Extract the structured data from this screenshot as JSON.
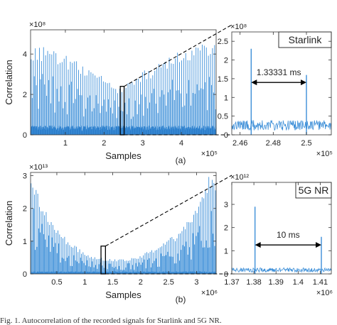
{
  "chart_data": [
    {
      "id": "a-main",
      "type": "line",
      "ylabel": "Correlation",
      "xlabel": "Samples",
      "x_exponent": "×10⁵",
      "y_exponent": "×10⁸",
      "panel_label": "(a)",
      "xlim": [
        0.1,
        4.9
      ],
      "ylim": [
        0,
        5.2
      ],
      "xticks": [
        1,
        2,
        3,
        4
      ],
      "yticks": [
        0,
        2,
        4
      ],
      "color": "#3d8fd8",
      "baseline_level": 0.35,
      "peak_spacing": 0.0533,
      "peak_envelope": [
        [
          0.1,
          4.5
        ],
        [
          0.6,
          4.3
        ],
        [
          1.2,
          3.8
        ],
        [
          1.8,
          3.1
        ],
        [
          2.4,
          2.3
        ],
        [
          3.0,
          3.2
        ],
        [
          3.6,
          3.8
        ],
        [
          4.2,
          4.4
        ],
        [
          4.9,
          4.8
        ]
      ],
      "zoom_box": {
        "x": [
          2.42,
          2.52
        ],
        "y": [
          0,
          2.4
        ]
      }
    },
    {
      "id": "a-zoom",
      "type": "line",
      "annotation": "Starlink",
      "measure_label": "1.33331 ms",
      "x_exponent": "×10⁵",
      "y_exponent": "×10⁸",
      "xlim": [
        2.455,
        2.515
      ],
      "ylim": [
        0,
        2.75
      ],
      "xticks": [
        2.46,
        2.48,
        2.5
      ],
      "yticks": [
        0,
        0.5,
        1,
        1.5,
        2,
        2.5
      ],
      "color": "#3d8fd8",
      "baseline_level": 0.3,
      "peaks": [
        {
          "x": 2.4667,
          "y": 2.3
        },
        {
          "x": 2.5,
          "y": 1.6
        }
      ],
      "measure_y": 1.4
    },
    {
      "id": "b-main",
      "type": "line",
      "ylabel": "Correlation",
      "xlabel": "Samples",
      "x_exponent": "×10⁶",
      "y_exponent": "×10¹³",
      "panel_label": "(b)",
      "xlim": [
        0.03,
        3.35
      ],
      "ylim": [
        0,
        3.1
      ],
      "xticks": [
        0.5,
        1,
        1.5,
        2,
        2.5,
        3
      ],
      "yticks": [
        0,
        1,
        2,
        3
      ],
      "color": "#3d8fd8",
      "baseline_level": 0.06,
      "peak_spacing": 0.03,
      "peak_envelope": [
        [
          0.03,
          3.0
        ],
        [
          0.3,
          2.0
        ],
        [
          0.7,
          1.0
        ],
        [
          1.1,
          0.55
        ],
        [
          1.5,
          0.45
        ],
        [
          1.9,
          0.5
        ],
        [
          2.3,
          0.85
        ],
        [
          2.7,
          1.3
        ],
        [
          3.0,
          2.0
        ],
        [
          3.25,
          3.1
        ],
        [
          3.35,
          2.6
        ]
      ],
      "zoom_box": {
        "x": [
          1.29,
          1.37
        ],
        "y": [
          0,
          0.85
        ]
      }
    },
    {
      "id": "b-zoom",
      "type": "line",
      "annotation": "5G NR",
      "measure_label": "10 ms",
      "x_exponent": "×10⁶",
      "y_exponent": "×10¹²",
      "xlim": [
        1.37,
        1.415
      ],
      "ylim": [
        0,
        3.95
      ],
      "xticks": [
        1.37,
        1.38,
        1.39,
        1.4,
        1.41
      ],
      "yticks": [
        0,
        1,
        2,
        3
      ],
      "color": "#3d8fd8",
      "baseline_level": 0.2,
      "peaks": [
        {
          "x": 1.3805,
          "y": 2.9
        },
        {
          "x": 1.4105,
          "y": 1.6
        }
      ],
      "measure_y": 1.25
    }
  ],
  "caption": "Fig. 1.  Autocorrelation of the recorded signals for Starlink and 5G NR."
}
